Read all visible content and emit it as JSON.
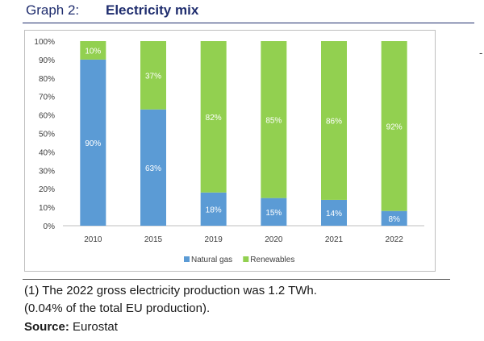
{
  "header": {
    "graph_number": "Graph 2:",
    "title": "Electricity mix"
  },
  "chart_data": {
    "type": "bar",
    "stacked": true,
    "categories": [
      "2010",
      "2015",
      "2019",
      "2020",
      "2021",
      "2022"
    ],
    "series": [
      {
        "name": "Natural gas",
        "color": "#5b9bd5",
        "values": [
          90,
          63,
          18,
          15,
          14,
          8
        ]
      },
      {
        "name": "Renewables",
        "color": "#92d050",
        "values": [
          10,
          37,
          82,
          85,
          86,
          92
        ]
      }
    ],
    "data_labels": {
      "Natural gas": [
        "90%",
        "63%",
        "18%",
        "15%",
        "14%",
        "8%"
      ],
      "Renewables": [
        "10%",
        "37%",
        "82%",
        "85%",
        "86%",
        "92%"
      ]
    },
    "y_ticks": [
      "0%",
      "10%",
      "20%",
      "30%",
      "40%",
      "50%",
      "60%",
      "70%",
      "80%",
      "90%",
      "100%"
    ],
    "ylim": [
      0,
      100
    ],
    "legend_position": "bottom",
    "grid": false
  },
  "notes": {
    "line1": "(1) The 2022 gross electricity production was 1.2 TWh.",
    "line2": "(0.04% of the total EU production).",
    "source_label": "Source:",
    "source_value": " Eurostat"
  },
  "stray_mark": "-"
}
